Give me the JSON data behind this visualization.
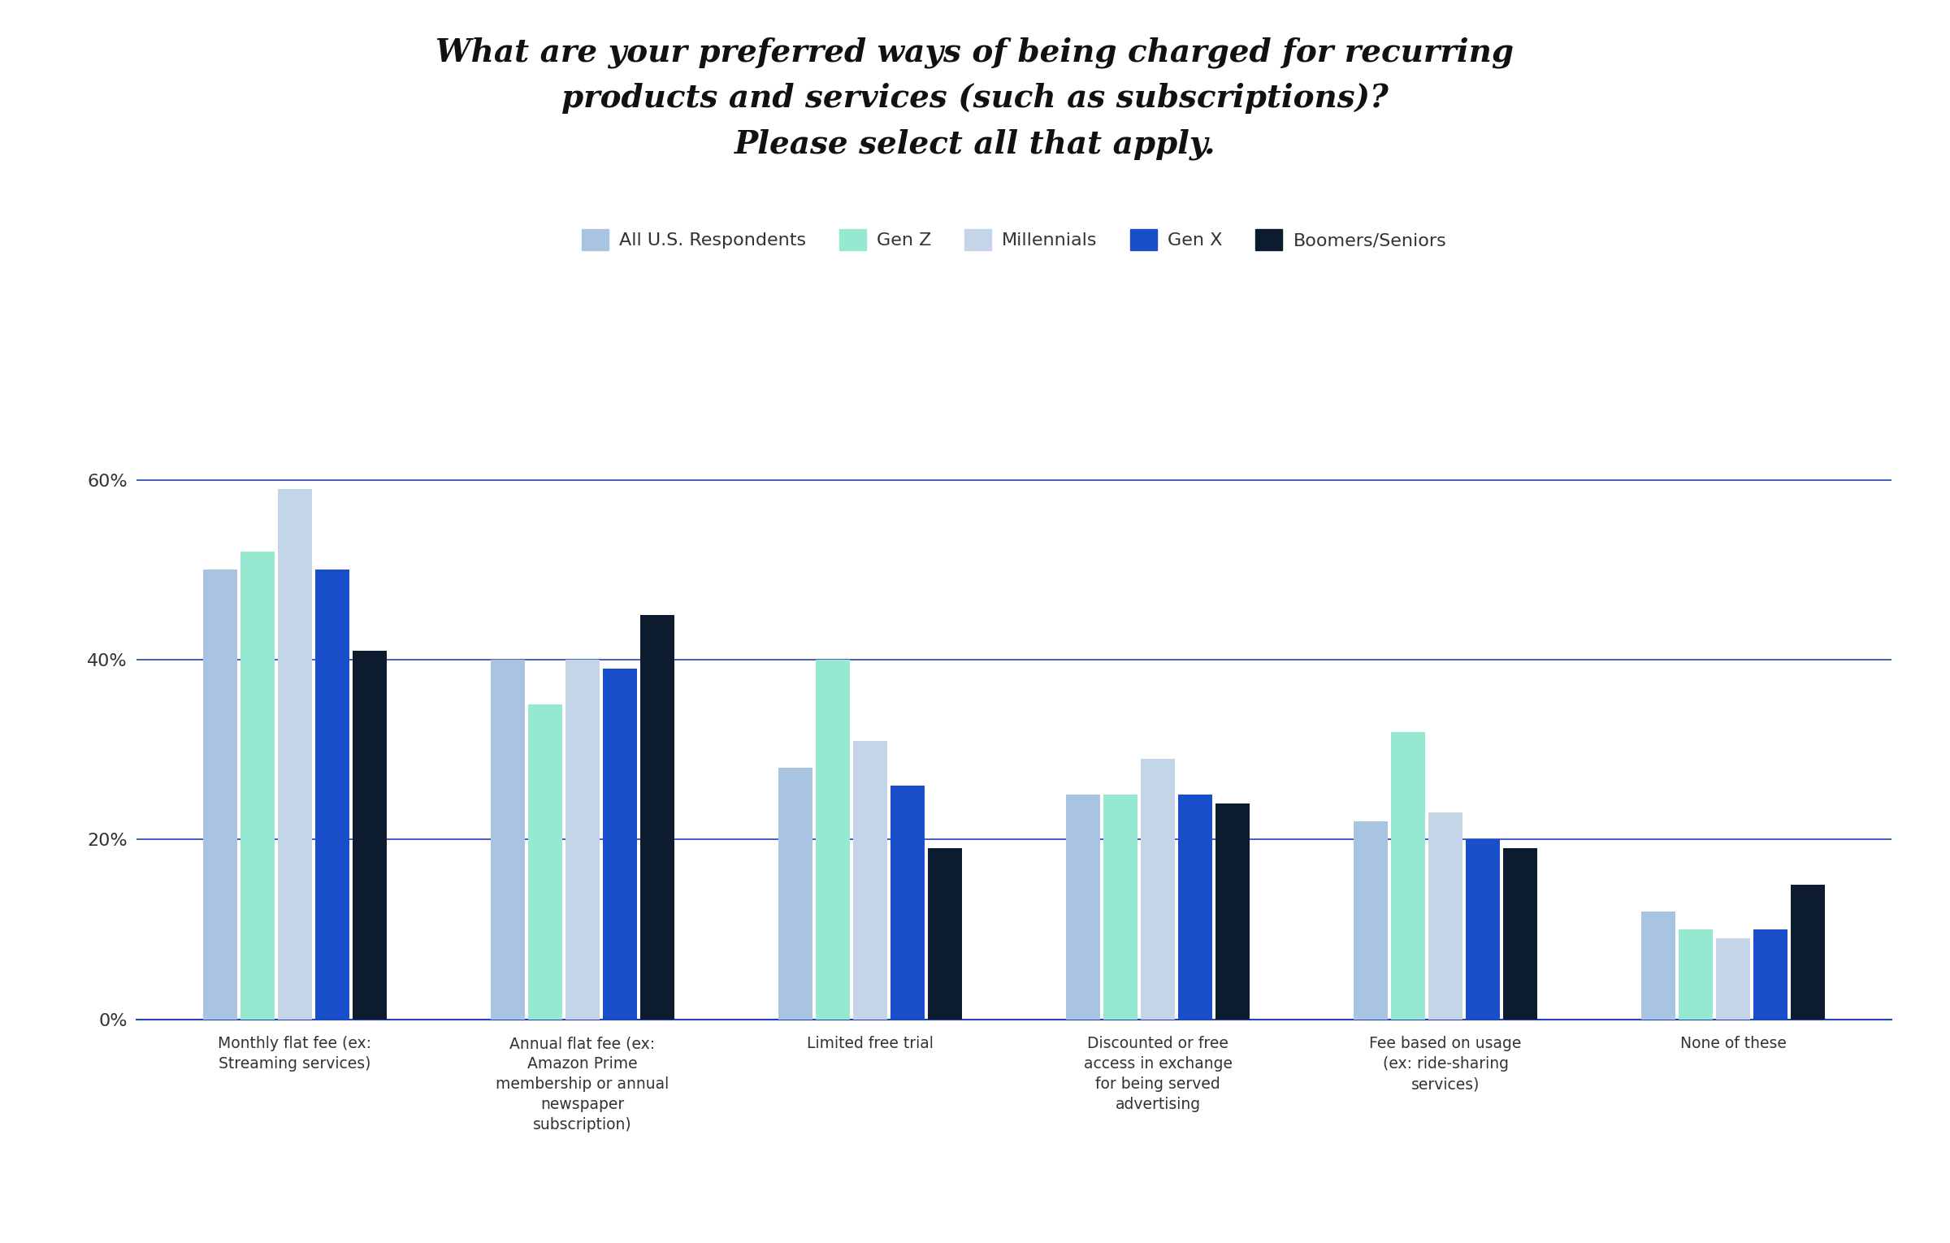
{
  "title_line1": "What are your preferred ways of being charged for recurring",
  "title_line2": "products and services (such as subscriptions)?",
  "title_line3": "Please select all that apply.",
  "categories": [
    "Monthly flat fee (ex:\nStreaming services)",
    "Annual flat fee (ex:\nAmazon Prime\nmembership or annual\nnewspaper\nsubscription)",
    "Limited free trial",
    "Discounted or free\naccess in exchange\nfor being served\nadvertising",
    "Fee based on usage\n(ex: ride-sharing\nservices)",
    "None of these"
  ],
  "series": {
    "All U.S. Respondents": [
      0.5,
      0.4,
      0.28,
      0.25,
      0.22,
      0.12
    ],
    "Gen Z": [
      0.52,
      0.35,
      0.4,
      0.25,
      0.32,
      0.1
    ],
    "Millennials": [
      0.59,
      0.4,
      0.31,
      0.29,
      0.23,
      0.09
    ],
    "Gen X": [
      0.5,
      0.39,
      0.26,
      0.25,
      0.2,
      0.1
    ],
    "Boomers/Seniors": [
      0.41,
      0.45,
      0.19,
      0.24,
      0.19,
      0.15
    ]
  },
  "colors": {
    "All U.S. Respondents": "#a8c4e0",
    "Gen Z": "#96e8d0",
    "Millennials": "#c5d5e8",
    "Gen X": "#1a4fcc",
    "Boomers/Seniors": "#0d1b2e"
  },
  "legend_order": [
    "All U.S. Respondents",
    "Gen Z",
    "Millennials",
    "Gen X",
    "Boomers/Seniors"
  ],
  "ylim": [
    0,
    0.65
  ],
  "yticks": [
    0.0,
    0.2,
    0.4,
    0.6
  ],
  "ytick_labels": [
    "0%",
    "20%",
    "40%",
    "60%"
  ],
  "background_color": "#ffffff",
  "grid_color": "#2244bb",
  "axis_color": "#2244bb"
}
